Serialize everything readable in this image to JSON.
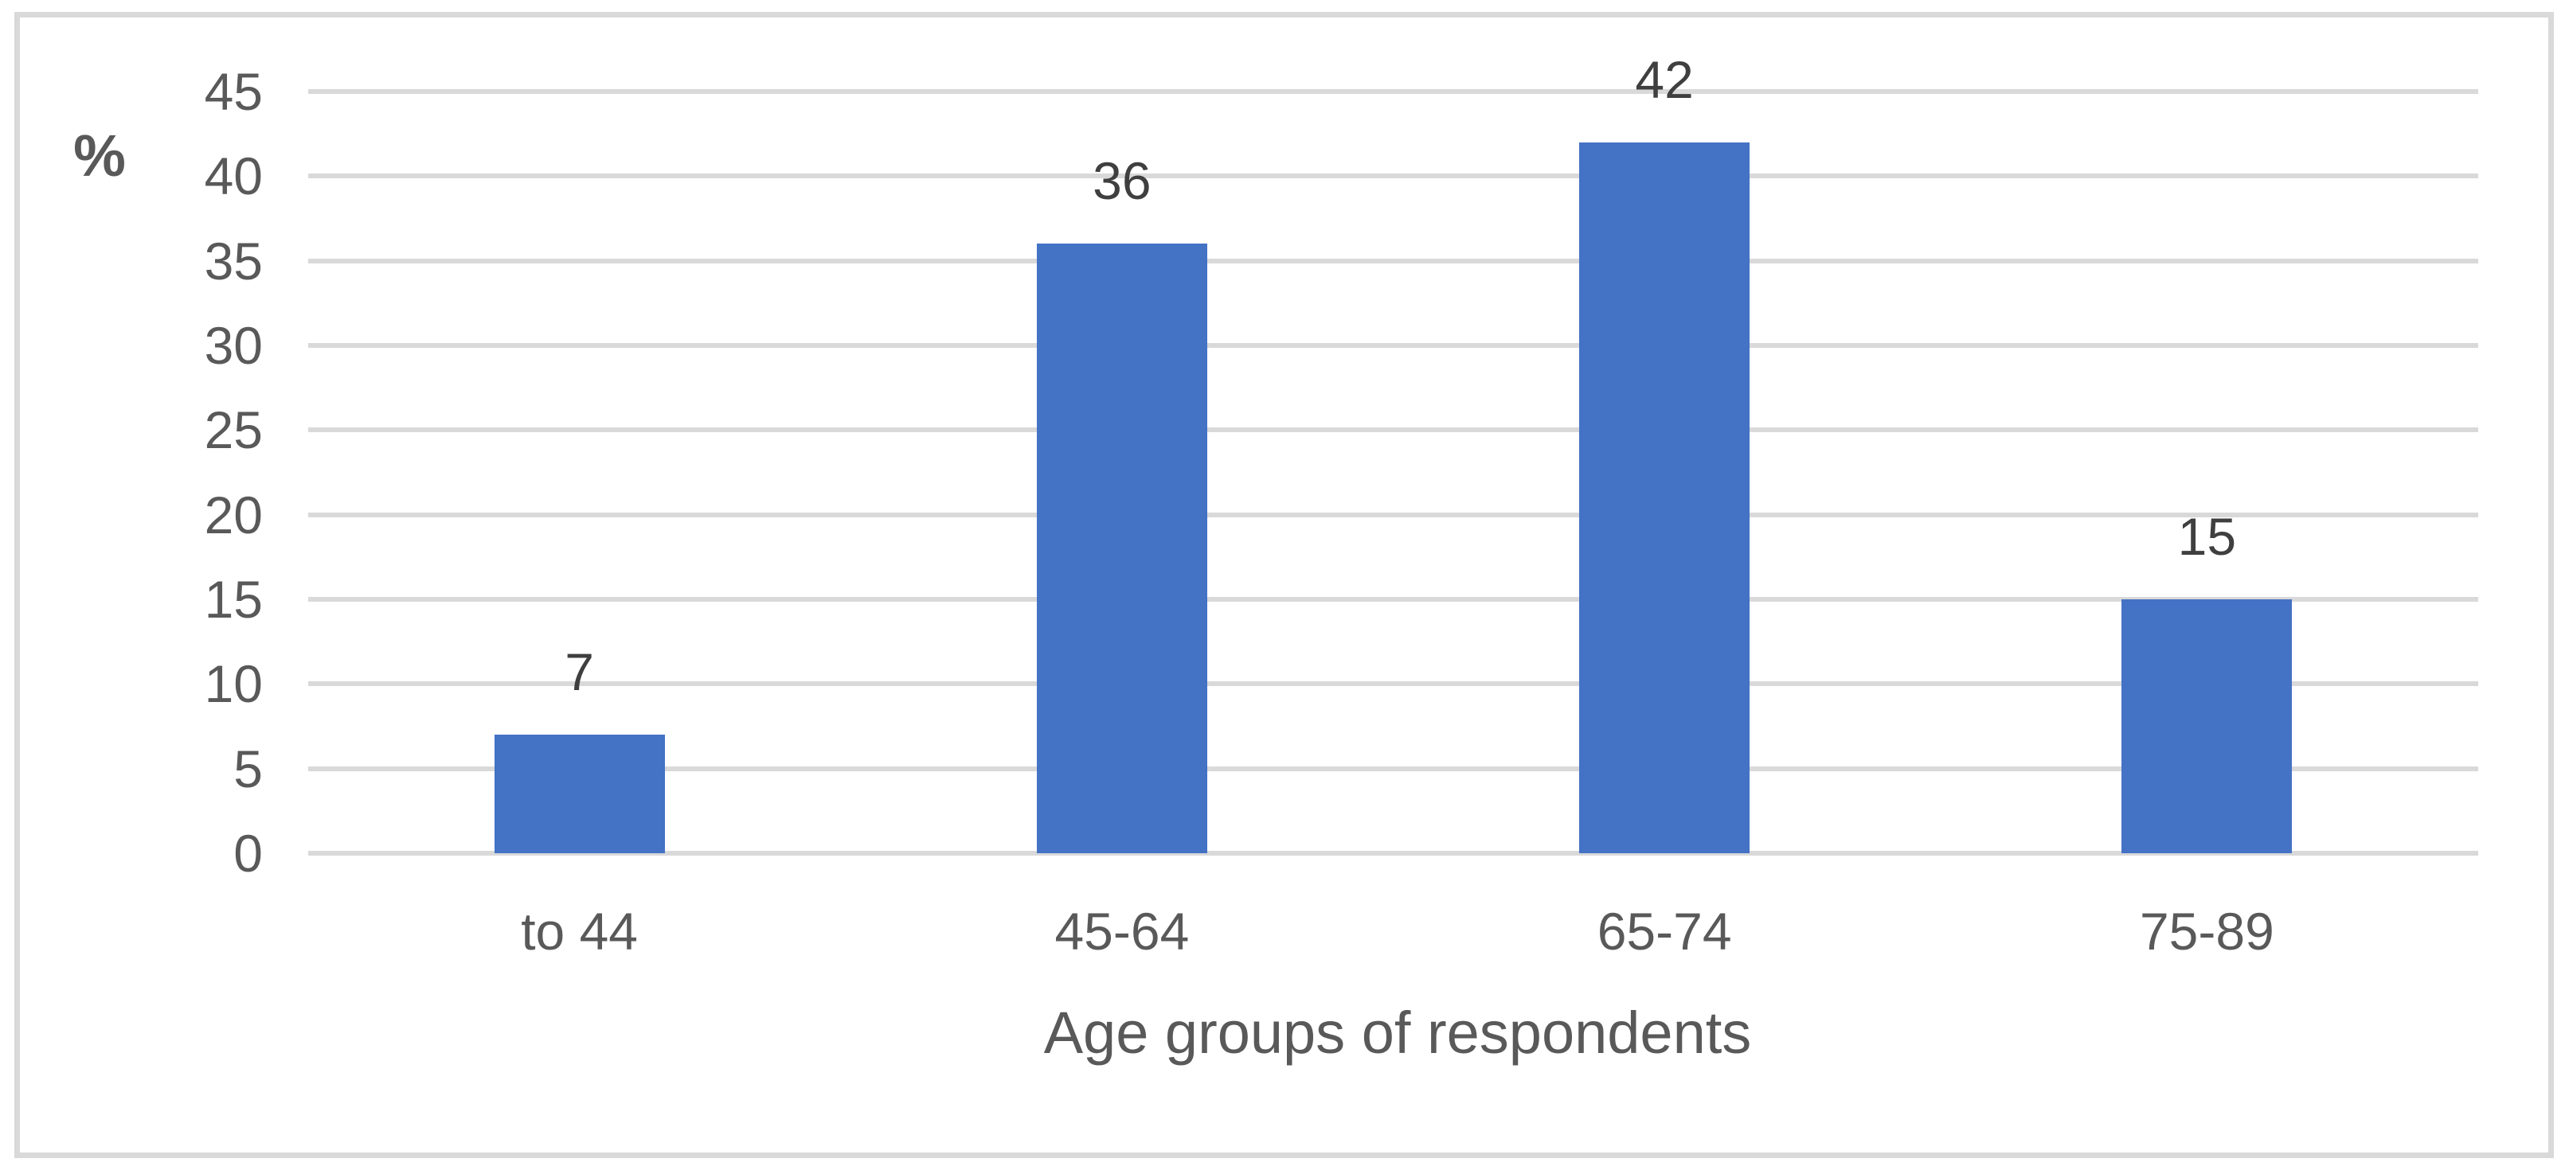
{
  "chart_data": {
    "type": "bar",
    "title": "",
    "categories": [
      "to 44",
      "45-64",
      "65-74",
      "75-89"
    ],
    "values": [
      7,
      36,
      42,
      15
    ],
    "data_labels": [
      "7",
      "36",
      "42",
      "15"
    ],
    "xlabel": "Age groups of respondents",
    "ylabel": "%",
    "ylim": [
      0,
      45
    ],
    "yticks": [
      0,
      5,
      10,
      15,
      20,
      25,
      30,
      35,
      40,
      45
    ],
    "grid": true,
    "legend_position": "none",
    "colors": {
      "bar_fill": "#4472C4",
      "gridline": "#d9d9d9",
      "frame_border": "#d9d9d9",
      "axis_text": "#595959",
      "data_label_text": "#3f3f3f"
    }
  }
}
